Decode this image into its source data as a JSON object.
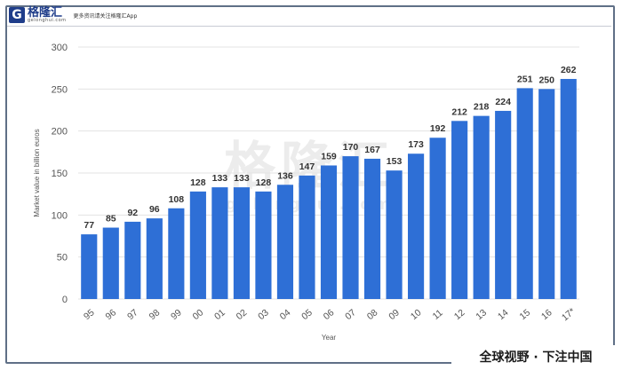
{
  "header": {
    "logo_mark": "G",
    "logo_name": "格隆汇",
    "logo_sub": "gelonghui.com",
    "slogan": "更多资讯请关注格隆汇App"
  },
  "watermark": {
    "main": "格隆汇",
    "domain": "gelonghui.com"
  },
  "footer": {
    "slogan": "全球视野 · 下注中国"
  },
  "colors": {
    "bar": "#2e6fd6",
    "frame": "#5f6f86",
    "axis_text": "#555555",
    "grid": "#e3e3e3"
  },
  "chart_data": {
    "type": "bar",
    "title": "",
    "xlabel": "Year",
    "ylabel": "Market value in billion euros",
    "ylim": [
      0,
      300
    ],
    "yticks": [
      0,
      50,
      100,
      150,
      200,
      250,
      300
    ],
    "grid": true,
    "categories": [
      "95",
      "96",
      "97",
      "98",
      "99",
      "00",
      "01",
      "02",
      "03",
      "04",
      "05",
      "06",
      "07",
      "08",
      "09",
      "10",
      "11",
      "12",
      "13",
      "14",
      "15",
      "16",
      "17*"
    ],
    "values": [
      77,
      85,
      92,
      96,
      108,
      128,
      133,
      133,
      128,
      136,
      147,
      159,
      170,
      167,
      153,
      173,
      192,
      212,
      218,
      224,
      251,
      250,
      262
    ]
  }
}
